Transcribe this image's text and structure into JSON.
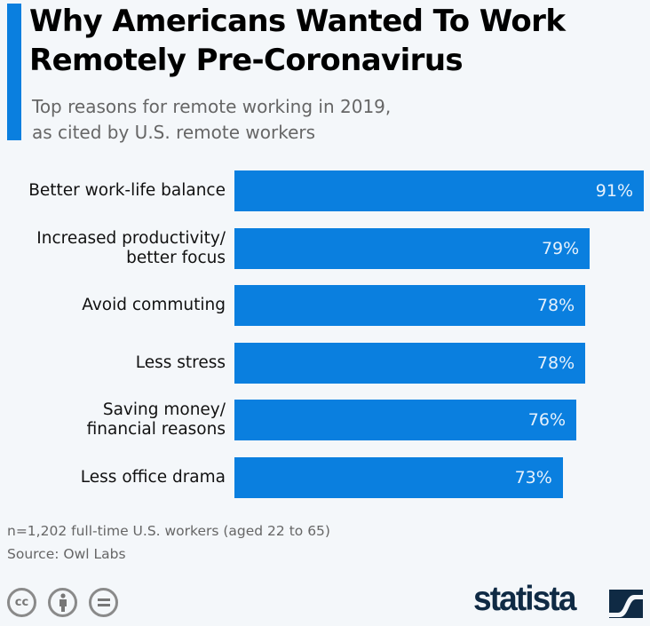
{
  "colors": {
    "accent": "#0a7fdf",
    "bar": "#0a7fdf",
    "background": "#f4f7fa",
    "logo": "#0f2a44"
  },
  "chart_data": {
    "type": "bar",
    "orientation": "horizontal",
    "title": "Why Americans Wanted To Work Remotely Pre-Coronavirus",
    "title_lines": [
      "Why Americans Wanted To Work",
      "Remotely Pre-Coronavirus"
    ],
    "subtitle_lines": [
      "Top reasons for remote working in 2019,",
      "as cited by U.S. remote workers"
    ],
    "categories": [
      "Better work-life balance",
      "Increased productivity/\nbetter focus",
      "Avoid commuting",
      "Less stress",
      "Saving money/\nfinancial reasons",
      "Less office drama"
    ],
    "values": [
      91,
      79,
      78,
      78,
      76,
      73
    ],
    "value_labels": [
      "91%",
      "79%",
      "78%",
      "78%",
      "76%",
      "73%"
    ],
    "unit": "%",
    "xlim": [
      0,
      100
    ],
    "grid": false
  },
  "footer": {
    "note": "n=1,202 full-time U.S. workers (aged 22 to 65)",
    "source": "Source: Owl Labs"
  },
  "license_icons": [
    "cc-icon",
    "by-attribution-icon",
    "no-derivatives-icon"
  ],
  "license_text": {
    "cc": "cc"
  },
  "brand": "statista"
}
